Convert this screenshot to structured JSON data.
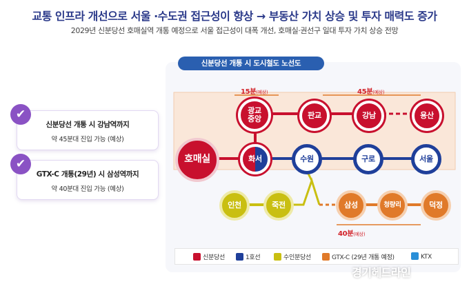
{
  "header": {
    "title": "교통 인프라 개선으로 서울 ·수도권 접근성이 향상 → 부동산 가치 상승 및 투자 매력도 증가",
    "subtitle": "2029년 신분당선 호매실역 개통 예정으로 서울 접근성이 대폭 개선, 호매실·권선구 일대 투자 가치 상승 전망"
  },
  "cards": [
    {
      "main": "신분당선 개통 시 강남역까지",
      "sub": "약 45분대 진입 가능 (예상)"
    },
    {
      "main": "GTX-C 개통(29년) 시 삼성역까지",
      "sub": "약 40분대 진입 가능 (예상)"
    }
  ],
  "diagram": {
    "heading": "신분당선 개통 시 도시철도 노선도",
    "time_15": "15분",
    "time_15_note": "(예상)",
    "time_45": "45분",
    "time_45_note": "(예상)",
    "time_40": "40분",
    "time_40_note": "(예상)",
    "stations": {
      "homaesil": "호매실",
      "gwanggyo": "광교\n중앙",
      "pangyo": "판교",
      "gangnam": "강남",
      "yongsan": "용산",
      "hwaseo": "화서",
      "suwon": "수원",
      "guro": "구로",
      "seoul": "서울",
      "incheon": "인천",
      "jukjeon": "죽전",
      "samseong": "삼성",
      "cheongnyangni": "청량리",
      "deokjeong": "덕정"
    }
  },
  "legend": [
    {
      "label": "신분당선",
      "color": "#c8102e"
    },
    {
      "label": "1호선",
      "color": "#1f3f9a"
    },
    {
      "label": "수인분당선",
      "color": "#c9bf12"
    },
    {
      "label": "GTX-C (29년 개통 예정)",
      "color": "#e07a2a"
    },
    {
      "label": "KTX",
      "color": "#2a8fd8"
    }
  ],
  "watermark": "경기헤드라인",
  "colors": {
    "shinbundang": "#c8102e",
    "line1": "#1f3f9a",
    "suin": "#c9bf12",
    "gtxc": "#e07a2a",
    "ktx": "#2a8fd8",
    "accent": "#8a52c4",
    "title": "#2b3a8a"
  }
}
